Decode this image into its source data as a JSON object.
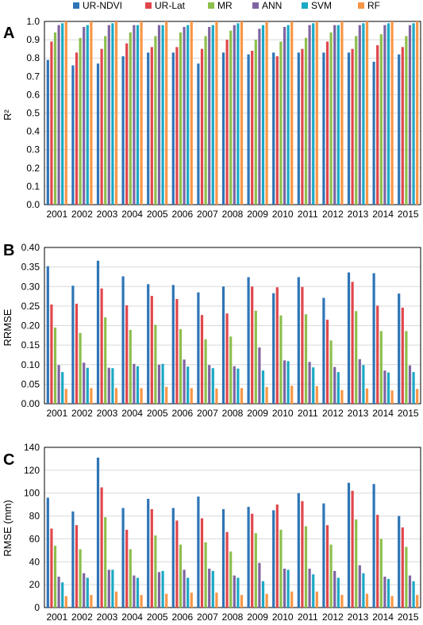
{
  "legend": {
    "items": [
      {
        "name": "UR-NDVI",
        "color": "#2E75B6"
      },
      {
        "name": "UR-Lat",
        "color": "#E0474C"
      },
      {
        "name": "MR",
        "color": "#8DBF4C"
      },
      {
        "name": "ANN",
        "color": "#8064A2"
      },
      {
        "name": "SVM",
        "color": "#1BA9C4"
      },
      {
        "name": "RF",
        "color": "#F79646"
      }
    ]
  },
  "chart_data": [
    {
      "type": "bar",
      "panel_label": "A",
      "ylabel": "R²",
      "xlabel": "",
      "ylim": [
        0,
        1.0
      ],
      "yticks": [
        "0.0",
        "0.1",
        "0.2",
        "0.3",
        "0.4",
        "0.5",
        "0.6",
        "0.7",
        "0.8",
        "0.9",
        "1.0"
      ],
      "grid": true,
      "categories": [
        "2001",
        "2002",
        "2003",
        "2004",
        "2005",
        "2006",
        "2007",
        "2008",
        "2009",
        "2010",
        "2011",
        "2012",
        "2013",
        "2014",
        "2015"
      ],
      "series": [
        {
          "name": "UR-NDVI",
          "values": [
            0.79,
            0.76,
            0.77,
            0.81,
            0.83,
            0.83,
            0.77,
            0.83,
            0.82,
            0.83,
            0.83,
            0.83,
            0.83,
            0.78,
            0.82
          ]
        },
        {
          "name": "UR-Lat",
          "values": [
            0.89,
            0.83,
            0.85,
            0.88,
            0.86,
            0.86,
            0.85,
            0.9,
            0.84,
            0.81,
            0.85,
            0.89,
            0.85,
            0.87,
            0.86
          ]
        },
        {
          "name": "MR",
          "values": [
            0.94,
            0.91,
            0.92,
            0.94,
            0.92,
            0.94,
            0.92,
            0.95,
            0.9,
            0.89,
            0.91,
            0.94,
            0.92,
            0.93,
            0.92
          ]
        },
        {
          "name": "ANN",
          "values": [
            0.98,
            0.97,
            0.98,
            0.98,
            0.98,
            0.97,
            0.97,
            0.98,
            0.96,
            0.97,
            0.98,
            0.98,
            0.98,
            0.98,
            0.98
          ]
        },
        {
          "name": "SVM",
          "values": [
            0.99,
            0.98,
            0.99,
            0.98,
            0.98,
            0.98,
            0.98,
            0.99,
            0.98,
            0.98,
            0.99,
            0.98,
            0.99,
            0.99,
            0.99
          ]
        },
        {
          "name": "RF",
          "values": [
            1.0,
            1.0,
            1.0,
            1.0,
            1.0,
            1.0,
            1.0,
            1.0,
            1.0,
            1.0,
            1.0,
            1.0,
            1.0,
            1.0,
            1.0
          ]
        }
      ]
    },
    {
      "type": "bar",
      "panel_label": "B",
      "ylabel": "RRMSE",
      "xlabel": "",
      "ylim": [
        0,
        0.4
      ],
      "yticks": [
        "0.00",
        "0.05",
        "0.10",
        "0.15",
        "0.20",
        "0.25",
        "0.30",
        "0.35",
        "0.40"
      ],
      "grid": true,
      "categories": [
        "2001",
        "2002",
        "2003",
        "2004",
        "2005",
        "2006",
        "2007",
        "2008",
        "2009",
        "2010",
        "2011",
        "2012",
        "2013",
        "2014",
        "2015"
      ],
      "series": [
        {
          "name": "UR-NDVI",
          "values": [
            0.352,
            0.302,
            0.366,
            0.326,
            0.306,
            0.304,
            0.285,
            0.3,
            0.324,
            0.283,
            0.324,
            0.271,
            0.336,
            0.334,
            0.282
          ]
        },
        {
          "name": "UR-Lat",
          "values": [
            0.254,
            0.256,
            0.295,
            0.252,
            0.276,
            0.268,
            0.227,
            0.231,
            0.3,
            0.298,
            0.299,
            0.215,
            0.312,
            0.251,
            0.246
          ]
        },
        {
          "name": "MR",
          "values": [
            0.195,
            0.181,
            0.221,
            0.189,
            0.202,
            0.191,
            0.165,
            0.172,
            0.238,
            0.226,
            0.229,
            0.162,
            0.237,
            0.186,
            0.186
          ]
        },
        {
          "name": "ANN",
          "values": [
            0.099,
            0.105,
            0.092,
            0.102,
            0.1,
            0.113,
            0.099,
            0.096,
            0.144,
            0.111,
            0.107,
            0.094,
            0.114,
            0.085,
            0.098
          ]
        },
        {
          "name": "SVM",
          "values": [
            0.081,
            0.092,
            0.091,
            0.096,
            0.102,
            0.095,
            0.091,
            0.09,
            0.085,
            0.109,
            0.093,
            0.081,
            0.099,
            0.08,
            0.081
          ]
        },
        {
          "name": "RF",
          "values": [
            0.038,
            0.04,
            0.04,
            0.04,
            0.043,
            0.04,
            0.039,
            0.04,
            0.043,
            0.046,
            0.045,
            0.035,
            0.039,
            0.034,
            0.038
          ]
        }
      ]
    },
    {
      "type": "bar",
      "panel_label": "C",
      "ylabel": "RMSE (mm)",
      "xlabel": "",
      "ylim": [
        0,
        140
      ],
      "yticks": [
        "0",
        "20",
        "40",
        "60",
        "80",
        "100",
        "120",
        "140"
      ],
      "grid": true,
      "categories": [
        "2001",
        "2002",
        "2003",
        "2004",
        "2005",
        "2006",
        "2007",
        "2008",
        "2009",
        "2010",
        "2011",
        "2012",
        "2013",
        "2014",
        "2015"
      ],
      "series": [
        {
          "name": "UR-NDVI",
          "values": [
            96,
            84,
            131,
            87,
            95,
            87,
            97,
            86,
            88,
            85,
            100,
            91,
            109,
            108,
            80
          ]
        },
        {
          "name": "UR-Lat",
          "values": [
            69,
            72,
            105,
            68,
            86,
            76,
            78,
            66,
            82,
            90,
            93,
            72,
            102,
            81,
            70
          ]
        },
        {
          "name": "MR",
          "values": [
            54,
            51,
            79,
            51,
            63,
            55,
            57,
            49,
            65,
            68,
            71,
            55,
            77,
            60,
            53
          ]
        },
        {
          "name": "ANN",
          "values": [
            27,
            30,
            33,
            28,
            31,
            33,
            34,
            28,
            39,
            34,
            34,
            32,
            37,
            27,
            28
          ]
        },
        {
          "name": "SVM",
          "values": [
            22,
            26,
            33,
            26,
            32,
            26,
            32,
            26,
            23,
            33,
            29,
            26,
            30,
            25,
            23
          ]
        },
        {
          "name": "RF",
          "values": [
            10,
            11,
            14,
            11,
            12,
            13,
            13,
            11,
            12,
            14,
            14,
            11,
            12,
            10,
            11
          ]
        }
      ]
    }
  ]
}
